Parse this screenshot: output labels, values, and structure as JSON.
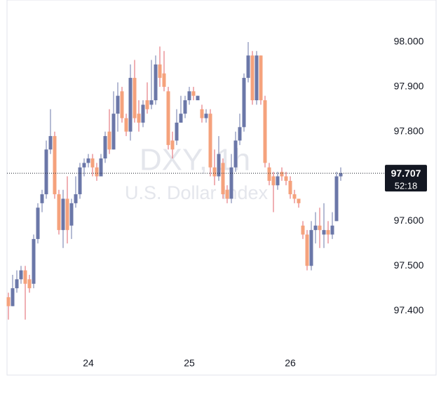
{
  "chart_data": {
    "type": "candlestick",
    "watermark_symbol": "DXY, 1h",
    "watermark_name": "U.S. Dollar Index",
    "categories": [
      null,
      null,
      null,
      null,
      null,
      null,
      null,
      null,
      null,
      null,
      null,
      null,
      null,
      null,
      null,
      null,
      null,
      null,
      null,
      "24",
      null,
      null,
      null,
      null,
      null,
      null,
      null,
      null,
      null,
      null,
      null,
      null,
      null,
      null,
      null,
      null,
      null,
      null,
      null,
      null,
      null,
      null,
      null,
      "25",
      null,
      null,
      null,
      null,
      null,
      null,
      null,
      null,
      null,
      null,
      null,
      null,
      null,
      null,
      null,
      null,
      null,
      null,
      null,
      null,
      null,
      null,
      null,
      "26",
      null,
      null,
      null,
      null,
      null,
      null,
      null,
      null,
      null,
      null,
      null,
      null
    ],
    "open": [
      97.43,
      97.41,
      97.45,
      97.47,
      97.49,
      97.47,
      97.46,
      97.56,
      97.64,
      97.66,
      97.76,
      97.79,
      97.66,
      97.58,
      97.65,
      97.59,
      97.64,
      97.66,
      97.72,
      97.73,
      97.74,
      97.72,
      97.7,
      97.74,
      97.8,
      97.76,
      97.84,
      97.89,
      97.83,
      97.8,
      97.92,
      97.84,
      97.82,
      97.87,
      97.86,
      97.87,
      97.95,
      97.93,
      97.89,
      97.78,
      97.78,
      97.82,
      97.84,
      97.87,
      97.89,
      97.87,
      97.85,
      97.83,
      97.84,
      97.72,
      97.7,
      97.73,
      97.67,
      97.65,
      97.72,
      97.78,
      97.81,
      97.92,
      97.97,
      97.87,
      97.97,
      97.87,
      97.72,
      97.7,
      97.68,
      97.71,
      97.7,
      97.69,
      97.66,
      97.65,
      97.59,
      97.57,
      97.5,
      97.58,
      97.59,
      97.57,
      97.58,
      97.57,
      97.6,
      97.7
    ],
    "high": [
      97.44,
      97.48,
      97.49,
      97.5,
      97.5,
      97.48,
      97.57,
      97.64,
      97.67,
      97.78,
      97.85,
      97.8,
      97.67,
      97.67,
      97.7,
      97.65,
      97.7,
      97.73,
      97.74,
      97.75,
      97.75,
      97.73,
      97.75,
      97.8,
      97.85,
      97.89,
      97.91,
      97.9,
      97.84,
      97.95,
      97.96,
      97.87,
      97.87,
      97.91,
      97.96,
      97.97,
      97.99,
      97.98,
      97.9,
      97.8,
      97.85,
      97.88,
      97.88,
      97.9,
      97.9,
      97.88,
      97.86,
      97.85,
      97.85,
      97.76,
      97.79,
      97.74,
      97.68,
      97.75,
      97.8,
      97.84,
      97.93,
      98.0,
      97.98,
      97.98,
      97.97,
      97.88,
      97.73,
      97.71,
      97.71,
      97.72,
      97.71,
      97.7,
      97.67,
      97.65,
      97.6,
      97.58,
      97.6,
      97.62,
      97.63,
      97.64,
      97.6,
      97.62,
      97.71,
      97.72
    ],
    "low": [
      97.38,
      97.41,
      97.44,
      97.46,
      97.38,
      97.44,
      97.45,
      97.55,
      97.62,
      97.65,
      97.75,
      97.65,
      97.57,
      97.54,
      97.55,
      97.56,
      97.63,
      97.65,
      97.7,
      97.72,
      97.7,
      97.69,
      97.7,
      97.73,
      97.75,
      97.76,
      97.8,
      97.82,
      97.79,
      97.78,
      97.82,
      97.8,
      97.81,
      97.84,
      97.85,
      97.86,
      97.9,
      97.89,
      97.76,
      97.74,
      97.77,
      97.82,
      97.83,
      97.86,
      97.87,
      97.87,
      97.82,
      97.82,
      97.7,
      97.68,
      97.69,
      97.65,
      97.64,
      97.64,
      97.71,
      97.77,
      97.8,
      97.91,
      97.86,
      97.86,
      97.86,
      97.72,
      97.68,
      97.62,
      97.67,
      97.69,
      97.68,
      97.65,
      97.64,
      97.63,
      97.56,
      97.49,
      97.49,
      97.55,
      97.54,
      97.54,
      97.55,
      97.56,
      97.6,
      97.69
    ],
    "close": [
      97.41,
      97.45,
      97.47,
      97.49,
      97.46,
      97.45,
      97.56,
      97.63,
      97.66,
      97.76,
      97.79,
      97.66,
      97.58,
      97.65,
      97.58,
      97.64,
      97.66,
      97.72,
      97.73,
      97.74,
      97.72,
      97.7,
      97.74,
      97.79,
      97.76,
      97.84,
      97.88,
      97.83,
      97.8,
      97.92,
      97.83,
      97.82,
      97.86,
      97.85,
      97.87,
      97.95,
      97.92,
      97.9,
      97.77,
      97.76,
      97.82,
      97.84,
      97.87,
      97.89,
      97.88,
      97.88,
      97.83,
      97.84,
      97.72,
      97.7,
      97.75,
      97.66,
      97.65,
      97.72,
      97.78,
      97.81,
      97.92,
      97.97,
      97.87,
      97.97,
      97.87,
      97.73,
      97.69,
      97.68,
      97.7,
      97.7,
      97.69,
      97.66,
      97.65,
      97.64,
      97.57,
      97.5,
      97.58,
      97.59,
      97.58,
      97.58,
      97.57,
      97.59,
      97.7,
      97.707
    ],
    "up_color": "#6b77a8",
    "down_color": "#f5a27c",
    "down_wick_color": "#e0606a",
    "ylim": [
      97.303,
      98.094
    ],
    "yticks": [
      {
        "value": 97.4,
        "label": "97.400"
      },
      {
        "value": 97.5,
        "label": "97.500"
      },
      {
        "value": 97.6,
        "label": "97.600"
      },
      {
        "value": 97.7,
        "label": "97.700"
      },
      {
        "value": 97.8,
        "label": "97.800"
      },
      {
        "value": 97.9,
        "label": "97.900"
      },
      {
        "value": 98.0,
        "label": "98.000"
      }
    ],
    "last_price": 97.707,
    "countdown": "52:18",
    "grid": false
  }
}
